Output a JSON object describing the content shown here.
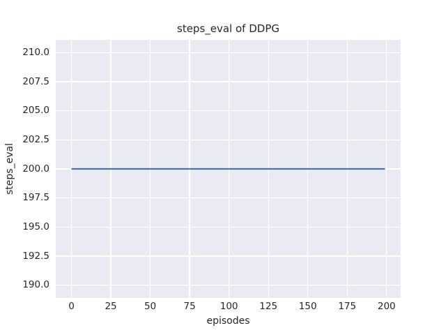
{
  "chart_data": {
    "type": "line",
    "title": "steps_eval of DDPG",
    "xlabel": "episodes",
    "ylabel": "steps_eval",
    "xlim": [
      -9.95,
      208.95
    ],
    "ylim": [
      188.9,
      211.1
    ],
    "grid": true,
    "legend": "none",
    "xticks": [
      {
        "value": 0,
        "label": "0"
      },
      {
        "value": 25,
        "label": "25"
      },
      {
        "value": 50,
        "label": "50"
      },
      {
        "value": 75,
        "label": "75"
      },
      {
        "value": 100,
        "label": "100"
      },
      {
        "value": 125,
        "label": "125"
      },
      {
        "value": 150,
        "label": "150"
      },
      {
        "value": 175,
        "label": "175"
      },
      {
        "value": 200,
        "label": "200"
      }
    ],
    "yticks": [
      {
        "value": 190.0,
        "label": "190.0"
      },
      {
        "value": 192.5,
        "label": "192.5"
      },
      {
        "value": 195.0,
        "label": "195.0"
      },
      {
        "value": 197.5,
        "label": "197.5"
      },
      {
        "value": 200.0,
        "label": "200.0"
      },
      {
        "value": 202.5,
        "label": "202.5"
      },
      {
        "value": 205.0,
        "label": "205.0"
      },
      {
        "value": 207.5,
        "label": "207.5"
      },
      {
        "value": 210.0,
        "label": "210.0"
      }
    ],
    "series": [
      {
        "name": "steps_eval",
        "x": [
          0,
          199
        ],
        "y": [
          200,
          200
        ],
        "color": "#4C72B0",
        "description": "constant horizontal line at steps_eval = 200 from episode 0 to episode 199"
      }
    ],
    "colors": {
      "figure_background": "#FFFFFF",
      "axes_background": "#EAEAF2",
      "gridline": "#FFFFFF",
      "text": "#262626",
      "line": "#4C72B0"
    }
  }
}
